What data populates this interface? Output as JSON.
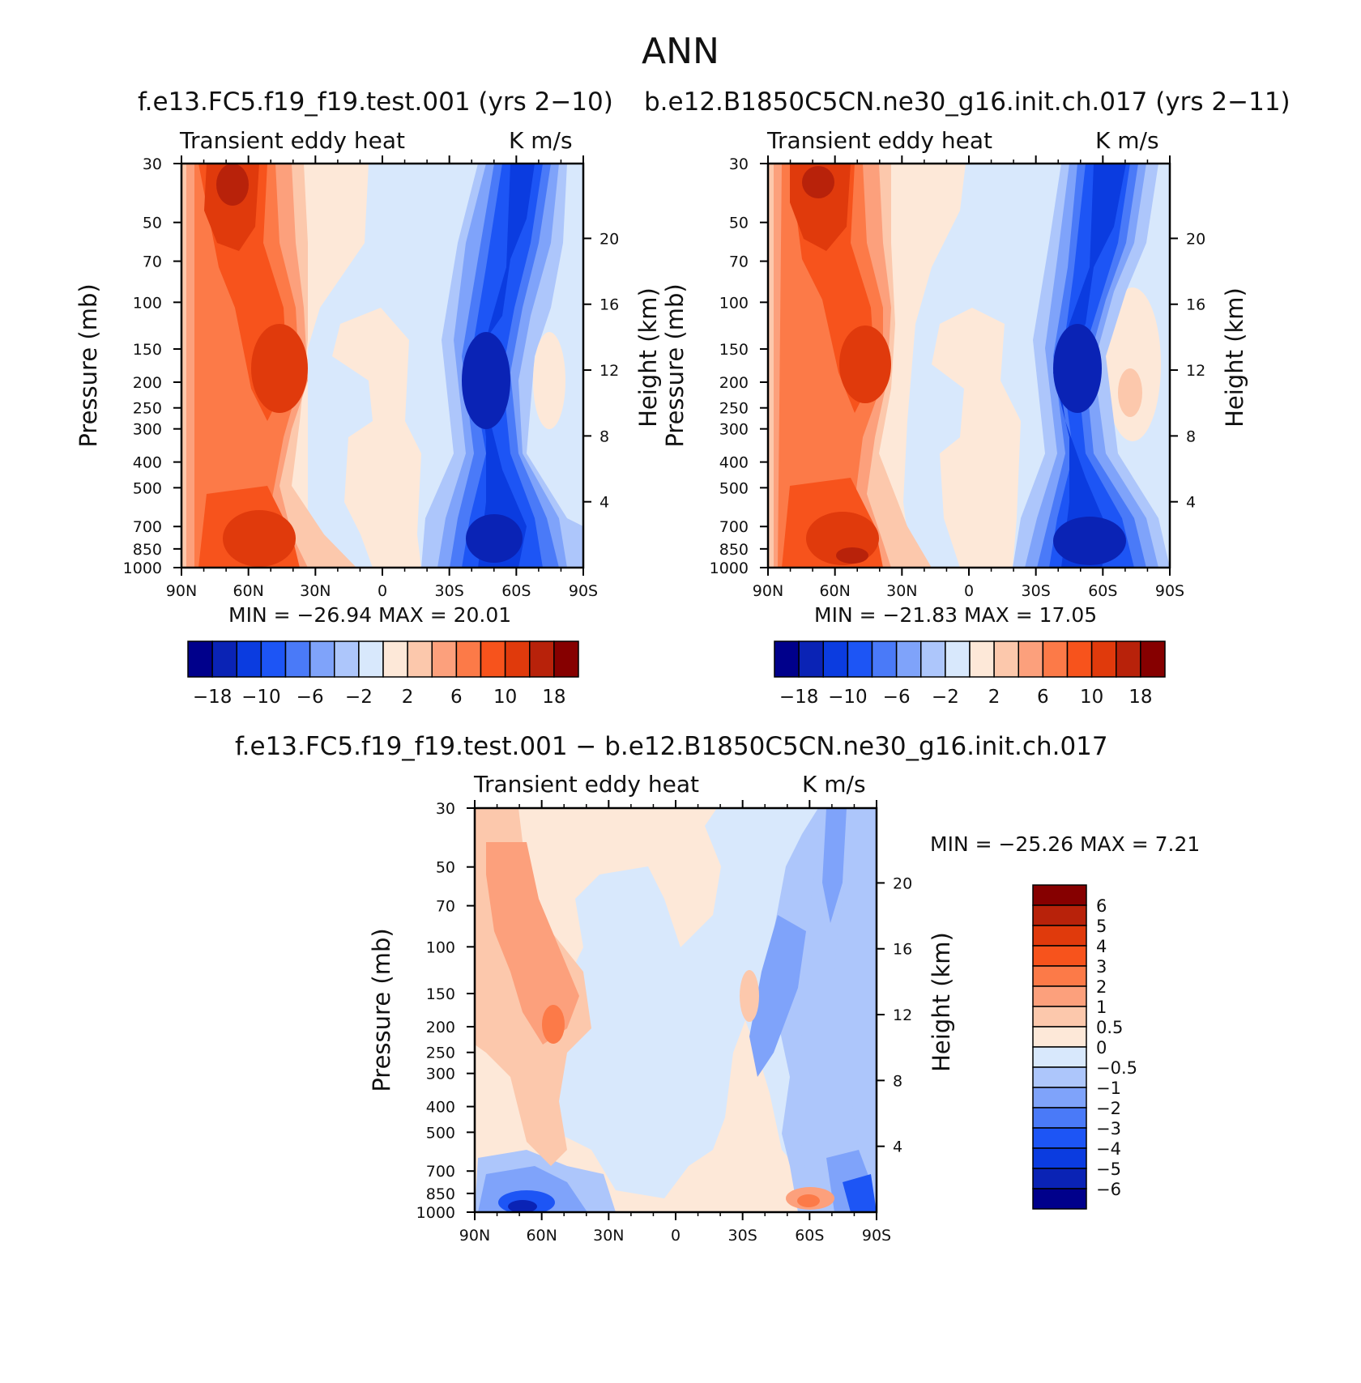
{
  "main_title": "ANN",
  "panels": [
    {
      "title": "f.e13.FC5.f19_f19.test.001 (yrs 2−10)",
      "left_label": "Transient eddy heat",
      "right_label": "K m/s",
      "y_axis_label": "Pressure (mb)",
      "y2_axis_label": "Height (km)",
      "min_max": "MIN = −26.94   MAX =   20.01",
      "colorbar_labels": [
        "−18",
        "−10",
        "−6",
        "−2",
        "2",
        "6",
        "10",
        "18"
      ]
    },
    {
      "title": "b.e12.B1850C5CN.ne30_g16.init.ch.017 (yrs 2−11)",
      "left_label": "Transient eddy heat",
      "right_label": "K m/s",
      "y_axis_label": "Pressure (mb)",
      "y2_axis_label": "Height (km)",
      "min_max": "MIN = −21.83   MAX =   17.05",
      "colorbar_labels": [
        "−18",
        "−10",
        "−6",
        "−2",
        "2",
        "6",
        "10",
        "18"
      ]
    },
    {
      "title": "f.e13.FC5.f19_f19.test.001 − b.e12.B1850C5CN.ne30_g16.init.ch.017",
      "left_label": "Transient eddy heat",
      "right_label": "K m/s",
      "y_axis_label": "Pressure (mb)",
      "y2_axis_label": "Height (km)",
      "min_max": "MIN = −25.26   MAX =    7.21",
      "colorbar_labels": [
        "6",
        "5",
        "4",
        "3",
        "2",
        "1",
        "0.5",
        "0",
        "−0.5",
        "−1",
        "−2",
        "−3",
        "−4",
        "−5",
        "−6"
      ]
    }
  ],
  "chart_data": [
    {
      "type": "heatmap",
      "title": "f.e13.FC5.f19_f19.test.001 (yrs 2−10)",
      "variable": "Transient eddy heat",
      "units": "K m/s",
      "xlabel": "",
      "ylabel": "Pressure (mb)",
      "y2label": "Height (km)",
      "x_ticks": [
        "90N",
        "60N",
        "30N",
        "0",
        "30S",
        "60S",
        "90S"
      ],
      "y_ticks": [
        "30",
        "50",
        "70",
        "100",
        "150",
        "200",
        "250",
        "300",
        "400",
        "500",
        "700",
        "850",
        "1000"
      ],
      "y2_ticks": [
        "20",
        "16",
        "12",
        "8",
        "4"
      ],
      "ylim": [
        1000,
        30
      ],
      "min": -26.94,
      "max": 20.01,
      "levels": [
        -18,
        -14,
        -10,
        -8,
        -6,
        -4,
        -2,
        0,
        2,
        4,
        6,
        8,
        10,
        14,
        18
      ]
    },
    {
      "type": "heatmap",
      "title": "b.e12.B1850C5CN.ne30_g16.init.ch.017 (yrs 2−11)",
      "variable": "Transient eddy heat",
      "units": "K m/s",
      "xlabel": "",
      "ylabel": "Pressure (mb)",
      "y2label": "Height (km)",
      "x_ticks": [
        "90N",
        "60N",
        "30N",
        "0",
        "30S",
        "60S",
        "90S"
      ],
      "y_ticks": [
        "30",
        "50",
        "70",
        "100",
        "150",
        "200",
        "250",
        "300",
        "400",
        "500",
        "700",
        "850",
        "1000"
      ],
      "y2_ticks": [
        "20",
        "16",
        "12",
        "8",
        "4"
      ],
      "ylim": [
        1000,
        30
      ],
      "min": -21.83,
      "max": 17.05,
      "levels": [
        -18,
        -14,
        -10,
        -8,
        -6,
        -4,
        -2,
        0,
        2,
        4,
        6,
        8,
        10,
        14,
        18
      ]
    },
    {
      "type": "heatmap",
      "title": "f.e13.FC5.f19_f19.test.001 − b.e12.B1850C5CN.ne30_g16.init.ch.017",
      "variable": "Transient eddy heat",
      "units": "K m/s",
      "xlabel": "",
      "ylabel": "Pressure (mb)",
      "y2label": "Height (km)",
      "x_ticks": [
        "90N",
        "60N",
        "30N",
        "0",
        "30S",
        "60S",
        "90S"
      ],
      "y_ticks": [
        "30",
        "50",
        "70",
        "100",
        "150",
        "200",
        "250",
        "300",
        "400",
        "500",
        "700",
        "850",
        "1000"
      ],
      "y2_ticks": [
        "20",
        "16",
        "12",
        "8",
        "4"
      ],
      "ylim": [
        1000,
        30
      ],
      "min": -25.26,
      "max": 7.21,
      "levels": [
        -6,
        -5,
        -4,
        -3,
        -2,
        -1,
        -0.5,
        0,
        0.5,
        1,
        2,
        3,
        4,
        5,
        6
      ]
    }
  ],
  "palette": [
    "#00008b",
    "#0a23b5",
    "#0b3ce0",
    "#1d55f5",
    "#4a7af8",
    "#7fa3fa",
    "#adc6fb",
    "#d8e8fc",
    "#fde8d8",
    "#fcc8ac",
    "#fca07c",
    "#fc7a48",
    "#f7531c",
    "#e03a0c",
    "#b8220a",
    "#860000"
  ]
}
